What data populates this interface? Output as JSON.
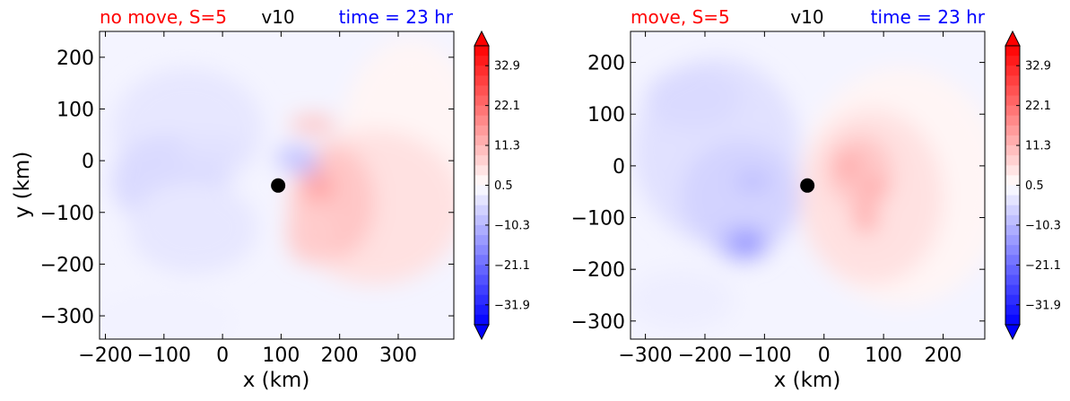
{
  "chart_data": [
    {
      "type": "heatmap",
      "title_left": "no move, S=5",
      "title_center": "v10",
      "title_right": "time = 23 hr",
      "title_colors": {
        "left": "#ff0000",
        "center": "#000000",
        "right": "#0000ff"
      },
      "xlabel": "x (km)",
      "ylabel": "y (km)",
      "xlim": [
        -210,
        395
      ],
      "ylim": [
        -345,
        250
      ],
      "xticks": [
        -200,
        -100,
        0,
        100,
        200,
        300
      ],
      "xtick_labels": [
        "−200",
        "−100",
        "0",
        "100",
        "200",
        "300"
      ],
      "yticks": [
        200,
        100,
        0,
        -100,
        -200,
        -300
      ],
      "ytick_labels": [
        "200",
        "100",
        "0",
        "−100",
        "−200",
        "−300"
      ],
      "center_marker": {
        "x": 95,
        "y": -48
      },
      "colorbar": {
        "ticks": [
          32.9,
          22.1,
          11.3,
          0.5,
          -10.3,
          -21.1,
          -31.9
        ],
        "tick_labels": [
          "32.9",
          "22.1",
          "11.3",
          "0.5",
          "−10.3",
          "−21.1",
          "−31.9"
        ],
        "range": [
          -37.3,
          38.3
        ],
        "extend": "both"
      },
      "blobs": [
        {
          "x": 320,
          "y": 20,
          "rx": 120,
          "ry": 215,
          "v": 2
        },
        {
          "x": 260,
          "y": -90,
          "rx": 150,
          "ry": 150,
          "v": 5
        },
        {
          "x": 190,
          "y": -80,
          "rx": 70,
          "ry": 110,
          "v": 9
        },
        {
          "x": 165,
          "y": -50,
          "rx": 25,
          "ry": 28,
          "v": 14
        },
        {
          "x": 150,
          "y": -140,
          "rx": 40,
          "ry": 60,
          "v": 8
        },
        {
          "x": 155,
          "y": 70,
          "rx": 40,
          "ry": 18,
          "v": 9
        },
        {
          "x": 140,
          "y": -5,
          "rx": 22,
          "ry": 22,
          "v": -14
        },
        {
          "x": 125,
          "y": 5,
          "rx": 35,
          "ry": 25,
          "v": -8
        },
        {
          "x": -60,
          "y": 60,
          "rx": 130,
          "ry": 120,
          "v": -3
        },
        {
          "x": -90,
          "y": -40,
          "rx": 100,
          "ry": 90,
          "v": -5
        },
        {
          "x": -50,
          "y": -130,
          "rx": 110,
          "ry": 90,
          "v": -3
        },
        {
          "x": -20,
          "y": 20,
          "rx": 60,
          "ry": 30,
          "v": -4
        },
        {
          "x": -100,
          "y": -310,
          "rx": 120,
          "ry": 60,
          "v": -1.5
        }
      ]
    },
    {
      "type": "heatmap",
      "title_left": "move, S=5",
      "title_center": "v10",
      "title_right": "time = 23 hr",
      "title_colors": {
        "left": "#ff0000",
        "center": "#000000",
        "right": "#0000ff"
      },
      "xlabel": "x (km)",
      "ylabel": "",
      "xlim": [
        -325,
        270
      ],
      "ylim": [
        -335,
        260
      ],
      "xticks": [
        -300,
        -200,
        -100,
        0,
        100,
        200
      ],
      "xtick_labels": [
        "−300",
        "−200",
        "−100",
        "0",
        "100",
        "200"
      ],
      "yticks": [
        200,
        100,
        0,
        -100,
        -200,
        -300
      ],
      "ytick_labels": [
        "200",
        "100",
        "0",
        "−100",
        "−200",
        "−300"
      ],
      "center_marker": {
        "x": -28,
        "y": -38
      },
      "colorbar": {
        "ticks": [
          32.9,
          22.1,
          11.3,
          0.5,
          -10.3,
          -21.1,
          -31.9
        ],
        "tick_labels": [
          "32.9",
          "22.1",
          "11.3",
          "0.5",
          "−10.3",
          "−21.1",
          "−31.9"
        ],
        "range": [
          -37.3,
          38.3
        ],
        "extend": "both"
      },
      "blobs": [
        {
          "x": 130,
          "y": -40,
          "rx": 170,
          "ry": 230,
          "v": 2
        },
        {
          "x": 80,
          "y": -60,
          "rx": 120,
          "ry": 170,
          "v": 5
        },
        {
          "x": 60,
          "y": -10,
          "rx": 55,
          "ry": 70,
          "v": 9
        },
        {
          "x": 40,
          "y": 0,
          "rx": 22,
          "ry": 25,
          "v": 13
        },
        {
          "x": 85,
          "y": -45,
          "rx": 25,
          "ry": 20,
          "v": 13
        },
        {
          "x": 70,
          "y": -100,
          "rx": 22,
          "ry": 30,
          "v": 12
        },
        {
          "x": -180,
          "y": 30,
          "rx": 140,
          "ry": 180,
          "v": -4
        },
        {
          "x": -140,
          "y": -60,
          "rx": 100,
          "ry": 110,
          "v": -6
        },
        {
          "x": -135,
          "y": -150,
          "rx": 45,
          "ry": 35,
          "v": -10
        },
        {
          "x": -130,
          "y": -150,
          "rx": 18,
          "ry": 14,
          "v": -20
        },
        {
          "x": -120,
          "y": -30,
          "rx": 30,
          "ry": 20,
          "v": -9
        },
        {
          "x": -220,
          "y": 130,
          "rx": 80,
          "ry": 60,
          "v": -5
        },
        {
          "x": -240,
          "y": -260,
          "rx": 90,
          "ry": 60,
          "v": -2
        }
      ]
    }
  ]
}
